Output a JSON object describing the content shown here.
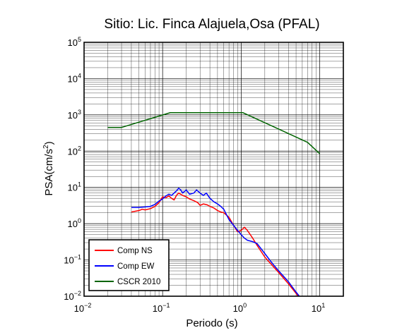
{
  "chart_data": {
    "type": "line",
    "title": "Sitio: Lic. Finca Alajuela,Osa (PFAL)",
    "xlabel": "Periodo (s)",
    "ylabel_base": "PSA(cm/s",
    "ylabel_exp": "2",
    "ylabel_close": ")",
    "xscale": "log",
    "yscale": "log",
    "xlim": [
      0.01,
      20
    ],
    "ylim": [
      0.01,
      100000
    ],
    "grid": true,
    "legend_position": "bottom-left",
    "x_ticks": [
      {
        "value": 0.01,
        "base": "10",
        "exp": "−2"
      },
      {
        "value": 0.1,
        "base": "10",
        "exp": "−1"
      },
      {
        "value": 1,
        "base": "10",
        "exp": "0"
      },
      {
        "value": 10,
        "base": "10",
        "exp": "1"
      }
    ],
    "y_ticks": [
      {
        "value": 0.01,
        "base": "10",
        "exp": "−2"
      },
      {
        "value": 0.1,
        "base": "10",
        "exp": "−1"
      },
      {
        "value": 1,
        "base": "10",
        "exp": "0"
      },
      {
        "value": 10,
        "base": "10",
        "exp": "1"
      },
      {
        "value": 100,
        "base": "10",
        "exp": "2"
      },
      {
        "value": 1000,
        "base": "10",
        "exp": "3"
      },
      {
        "value": 10000,
        "base": "10",
        "exp": "4"
      },
      {
        "value": 100000,
        "base": "10",
        "exp": "5"
      }
    ],
    "series": [
      {
        "name": "Comp NS",
        "color": "#ff0000",
        "points": [
          [
            0.04,
            2.1
          ],
          [
            0.045,
            2.2
          ],
          [
            0.05,
            2.3
          ],
          [
            0.055,
            2.5
          ],
          [
            0.06,
            2.4
          ],
          [
            0.07,
            2.6
          ],
          [
            0.08,
            3.0
          ],
          [
            0.09,
            3.8
          ],
          [
            0.1,
            5.5
          ],
          [
            0.11,
            5.2
          ],
          [
            0.12,
            5.8
          ],
          [
            0.13,
            5.0
          ],
          [
            0.14,
            4.5
          ],
          [
            0.15,
            6.0
          ],
          [
            0.16,
            7.0
          ],
          [
            0.18,
            6.0
          ],
          [
            0.2,
            5.5
          ],
          [
            0.22,
            4.8
          ],
          [
            0.25,
            4.3
          ],
          [
            0.28,
            3.8
          ],
          [
            0.3,
            3.2
          ],
          [
            0.33,
            3.5
          ],
          [
            0.37,
            3.3
          ],
          [
            0.4,
            3.0
          ],
          [
            0.45,
            2.7
          ],
          [
            0.5,
            2.3
          ],
          [
            0.55,
            2.1
          ],
          [
            0.6,
            2.0
          ],
          [
            0.7,
            1.5
          ],
          [
            0.8,
            0.9
          ],
          [
            0.9,
            0.6
          ],
          [
            1.0,
            0.65
          ],
          [
            1.1,
            0.8
          ],
          [
            1.2,
            0.65
          ],
          [
            1.4,
            0.4
          ],
          [
            1.6,
            0.25
          ],
          [
            2.0,
            0.12
          ],
          [
            2.5,
            0.07
          ],
          [
            3.0,
            0.045
          ],
          [
            4.0,
            0.022
          ],
          [
            5.0,
            0.012
          ],
          [
            5.3,
            0.01
          ]
        ]
      },
      {
        "name": "Comp EW",
        "color": "#0000ff",
        "points": [
          [
            0.04,
            2.8
          ],
          [
            0.05,
            2.8
          ],
          [
            0.06,
            2.9
          ],
          [
            0.07,
            3.0
          ],
          [
            0.08,
            3.4
          ],
          [
            0.09,
            4.2
          ],
          [
            0.1,
            4.8
          ],
          [
            0.11,
            5.8
          ],
          [
            0.12,
            6.5
          ],
          [
            0.13,
            6.0
          ],
          [
            0.14,
            7.0
          ],
          [
            0.15,
            8.0
          ],
          [
            0.16,
            9.5
          ],
          [
            0.17,
            8.5
          ],
          [
            0.18,
            7.0
          ],
          [
            0.2,
            8.5
          ],
          [
            0.22,
            6.5
          ],
          [
            0.25,
            7.0
          ],
          [
            0.27,
            8.5
          ],
          [
            0.3,
            7.0
          ],
          [
            0.33,
            6.0
          ],
          [
            0.36,
            7.0
          ],
          [
            0.4,
            5.0
          ],
          [
            0.45,
            4.0
          ],
          [
            0.5,
            3.5
          ],
          [
            0.55,
            3.0
          ],
          [
            0.6,
            2.5
          ],
          [
            0.7,
            1.3
          ],
          [
            0.8,
            0.9
          ],
          [
            0.9,
            0.65
          ],
          [
            1.0,
            0.5
          ],
          [
            1.1,
            0.4
          ],
          [
            1.2,
            0.35
          ],
          [
            1.4,
            0.32
          ],
          [
            1.6,
            0.28
          ],
          [
            2.0,
            0.15
          ],
          [
            2.5,
            0.08
          ],
          [
            3.0,
            0.05
          ],
          [
            4.0,
            0.025
          ],
          [
            5.0,
            0.013
          ],
          [
            5.5,
            0.01
          ]
        ]
      },
      {
        "name": "CSCR 2010",
        "color": "#006400",
        "points": [
          [
            0.02,
            450
          ],
          [
            0.03,
            450
          ],
          [
            0.125,
            1150
          ],
          [
            1.05,
            1150
          ],
          [
            7.0,
            175
          ],
          [
            10.0,
            85
          ]
        ]
      }
    ]
  }
}
